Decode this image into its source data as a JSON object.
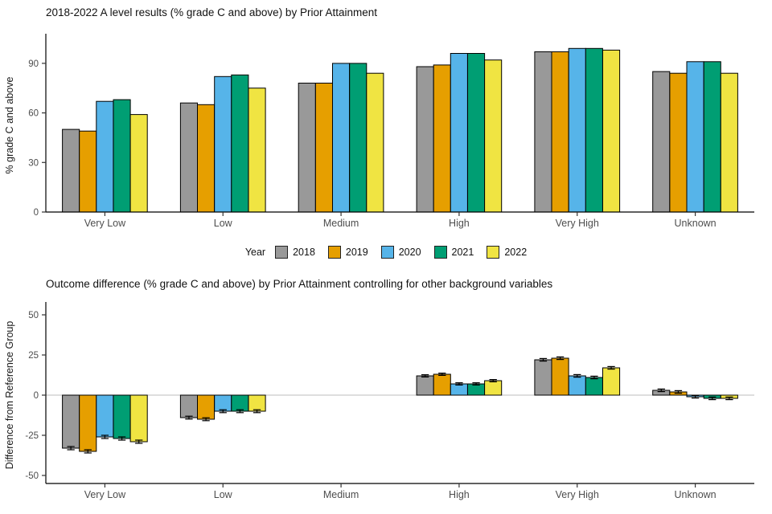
{
  "legend": {
    "title": "Year"
  },
  "chart_data": [
    {
      "type": "bar",
      "title": "2018-2022 A level results (% grade C and above) by Prior Attainment",
      "xlabel": "",
      "ylabel": "% grade C and above",
      "categories": [
        "Very Low",
        "Low",
        "Medium",
        "High",
        "Very High",
        "Unknown"
      ],
      "series": [
        {
          "name": "2018",
          "color": "#999999",
          "values": [
            50,
            66,
            78,
            88,
            97,
            85
          ]
        },
        {
          "name": "2019",
          "color": "#E69F00",
          "values": [
            49,
            65,
            78,
            89,
            97,
            84
          ]
        },
        {
          "name": "2020",
          "color": "#56B4E9",
          "values": [
            67,
            82,
            90,
            96,
            99,
            91
          ]
        },
        {
          "name": "2021",
          "color": "#009E73",
          "values": [
            68,
            83,
            90,
            96,
            99,
            91
          ]
        },
        {
          "name": "2022",
          "color": "#F0E442",
          "values": [
            59,
            75,
            84,
            92,
            98,
            84
          ]
        }
      ],
      "yticks": [
        0,
        30,
        60,
        90
      ],
      "ylim": [
        0,
        105
      ],
      "grid": false,
      "legend_position": "bottom"
    },
    {
      "type": "bar",
      "title": "Outcome difference (% grade C and above) by Prior Attainment controlling for other background variables",
      "xlabel": "",
      "ylabel": "Difference from Reference Group",
      "categories": [
        "Very Low",
        "Low",
        "Medium",
        "High",
        "Very High",
        "Unknown"
      ],
      "series": [
        {
          "name": "2018",
          "color": "#999999",
          "values": [
            -33,
            -14,
            0,
            12,
            22,
            3
          ],
          "errors": [
            1,
            0.9,
            0,
            0.7,
            0.8,
            0.8
          ]
        },
        {
          "name": "2019",
          "color": "#E69F00",
          "values": [
            -35,
            -15,
            0,
            13,
            23,
            2
          ],
          "errors": [
            1,
            0.9,
            0,
            0.7,
            0.8,
            0.8
          ]
        },
        {
          "name": "2020",
          "color": "#56B4E9",
          "values": [
            -26,
            -10,
            0,
            7,
            12,
            -1
          ],
          "errors": [
            1,
            0.9,
            0,
            0.7,
            0.8,
            0.8
          ]
        },
        {
          "name": "2021",
          "color": "#009E73",
          "values": [
            -27,
            -10,
            0,
            7,
            11,
            -2
          ],
          "errors": [
            1,
            0.9,
            0,
            0.7,
            0.8,
            0.8
          ]
        },
        {
          "name": "2022",
          "color": "#F0E442",
          "values": [
            -29,
            -10,
            0,
            9,
            17,
            -2
          ],
          "errors": [
            1,
            0.9,
            0,
            0.7,
            0.8,
            0.8
          ]
        }
      ],
      "yticks": [
        -50,
        -25,
        0,
        25,
        50
      ],
      "ylim": [
        -55,
        55
      ],
      "reference_line": 0,
      "grid": false
    }
  ]
}
